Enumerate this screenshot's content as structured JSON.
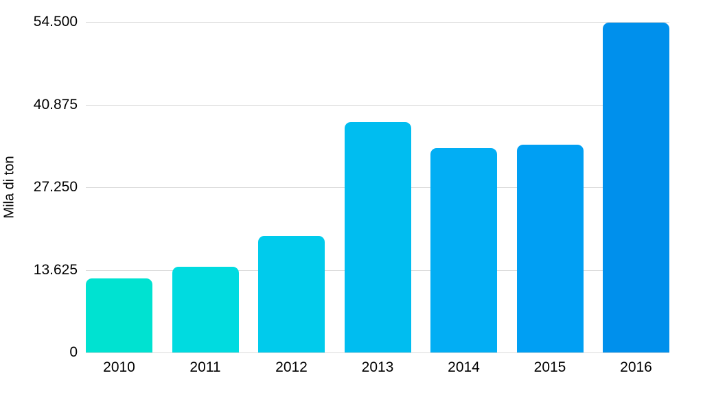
{
  "chart_data": {
    "type": "bar",
    "title": "",
    "xlabel": "",
    "ylabel": "Mila di ton",
    "categories": [
      "2010",
      "2011",
      "2012",
      "2013",
      "2014",
      "2015",
      "2016"
    ],
    "values": [
      12200,
      14100,
      19200,
      38000,
      33700,
      34300,
      54400
    ],
    "ylim": [
      0,
      54500
    ],
    "yticks": [
      54500,
      40875,
      27250,
      13625,
      0
    ],
    "ytick_labels": [
      "54.500",
      "40.875",
      "27.250",
      "13.625",
      "0"
    ],
    "bar_colors": [
      "#00E2D1",
      "#00DBE0",
      "#00CBEC",
      "#00BDF0",
      "#02AEF4",
      "#009FF3",
      "#0090EC"
    ],
    "gridline_color": "#dbdbdb",
    "background_color": "#ffffff",
    "grid": true,
    "legend": false
  }
}
